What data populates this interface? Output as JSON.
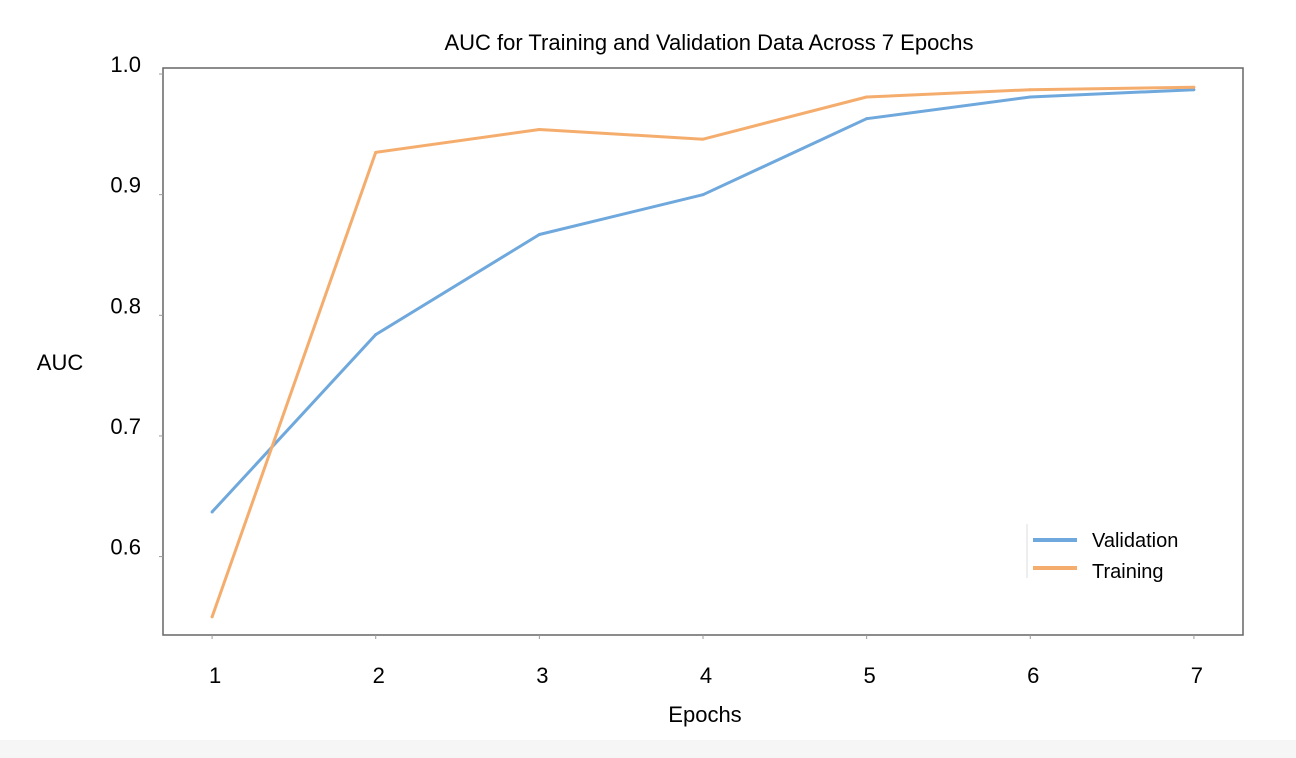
{
  "chart_data": {
    "type": "line",
    "title": "AUC for Training and Validation Data Across 7 Epochs",
    "xlabel": "Epochs",
    "ylabel": "AUC",
    "x": [
      1,
      2,
      3,
      4,
      5,
      6,
      7
    ],
    "x_ticks": [
      "1",
      "2",
      "3",
      "4",
      "5",
      "6",
      "7"
    ],
    "y_ticks": [
      "0.6",
      "0.7",
      "0.8",
      "0.9",
      "1.0"
    ],
    "y_tick_values": [
      0.6,
      0.7,
      0.8,
      0.9,
      1.0
    ],
    "ylim": [
      0.535,
      1.005
    ],
    "xlim": [
      0.7,
      7.3
    ],
    "grid": false,
    "legend_position": "bottom-right",
    "series": [
      {
        "name": "Validation",
        "color": "#6fa8dc",
        "values": [
          0.637,
          0.784,
          0.867,
          0.9,
          0.963,
          0.981,
          0.987
        ]
      },
      {
        "name": "Training",
        "color": "#f5ad6e",
        "values": [
          0.55,
          0.935,
          0.954,
          0.946,
          0.981,
          0.987,
          0.989
        ]
      }
    ]
  }
}
